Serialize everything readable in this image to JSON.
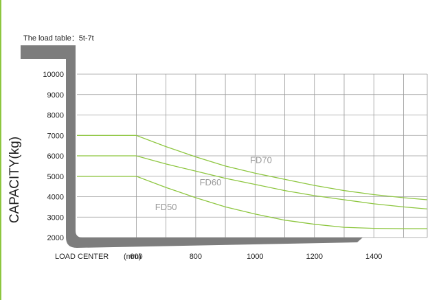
{
  "title": "The load table：5t-7t",
  "chart_data": {
    "type": "line",
    "title": "The load table：5t-7t",
    "ylabel": "CAPACITY(kg)",
    "xlabel": "LOAD CENTER",
    "xunit": "(mm)",
    "ylim": [
      2000,
      10000
    ],
    "xlim": [
      400,
      1580
    ],
    "yticks": [
      2000,
      3000,
      4000,
      5000,
      6000,
      7000,
      8000,
      9000,
      10000
    ],
    "xticks": [
      600,
      800,
      1000,
      1200,
      1400
    ],
    "grid": true,
    "series": [
      {
        "name": "FD70",
        "x": [
          400,
          600,
          700,
          800,
          900,
          1000,
          1100,
          1200,
          1300,
          1400,
          1500,
          1580
        ],
        "values": [
          7000,
          7000,
          6450,
          5950,
          5500,
          5150,
          4850,
          4550,
          4300,
          4100,
          3950,
          3850
        ]
      },
      {
        "name": "FD60",
        "x": [
          400,
          600,
          700,
          800,
          900,
          1000,
          1100,
          1200,
          1300,
          1400,
          1500,
          1580
        ],
        "values": [
          6000,
          6000,
          5600,
          5250,
          4900,
          4600,
          4300,
          4050,
          3850,
          3650,
          3500,
          3400
        ]
      },
      {
        "name": "FD50",
        "x": [
          400,
          600,
          700,
          800,
          900,
          1000,
          1100,
          1200,
          1300,
          1400,
          1500,
          1580
        ],
        "values": [
          5000,
          5000,
          4450,
          3950,
          3500,
          3150,
          2850,
          2650,
          2500,
          2450,
          2430,
          2430
        ]
      }
    ],
    "colors": {
      "series_line": "#8dc63f",
      "fork": "#7d7d7d",
      "grid": "#9a9a9a",
      "series_label": "#9a9a9a"
    }
  }
}
